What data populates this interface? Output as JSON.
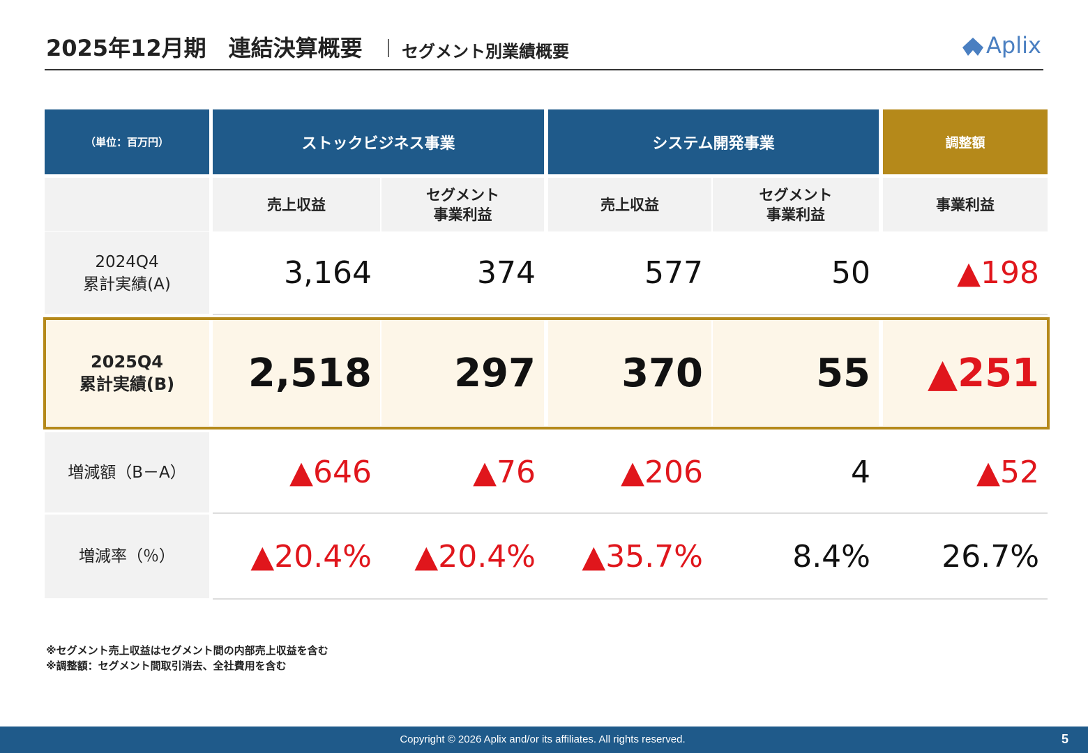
{
  "header": {
    "title": "2025年12月期　連結決算概要",
    "subtitle": "セグメント別業績概要",
    "logo": "Aplix"
  },
  "table": {
    "unit": "（単位：百万円）",
    "groups": [
      "ストックビジネス事業",
      "システム開発事業",
      "調整額"
    ],
    "columns": [
      [
        "売上収益"
      ],
      [
        "セグメント",
        "事業利益"
      ],
      [
        "売上収益"
      ],
      [
        "セグメント",
        "事業利益"
      ],
      [
        "事業利益"
      ]
    ],
    "rows": [
      {
        "label": [
          "2024Q4",
          "累計実績(A)"
        ],
        "cells": [
          "3,164",
          "374",
          "577",
          "50",
          "▲198"
        ]
      },
      {
        "label": [
          "2025Q4",
          "累計実績(B)"
        ],
        "cells": [
          "2,518",
          "297",
          "370",
          "55",
          "▲251"
        ]
      },
      {
        "label": [
          "増減額（B－A）"
        ],
        "cells": [
          "▲646",
          "▲76",
          "▲206",
          "4",
          "▲52"
        ]
      },
      {
        "label": [
          "増減率（％）"
        ],
        "cells": [
          "▲20.4%",
          "▲20.4%",
          "▲35.7%",
          "8.4%",
          "26.7%"
        ]
      }
    ]
  },
  "notes": [
    "※セグメント売上収益はセグメント間の内部売上収益を含む",
    "※調整額：セグメント間取引消去、全社費用を含む"
  ],
  "footer": {
    "copyright": "Copyright © 2026  Aplix and/or its affiliates. All rights reserved.",
    "page": "5"
  }
}
